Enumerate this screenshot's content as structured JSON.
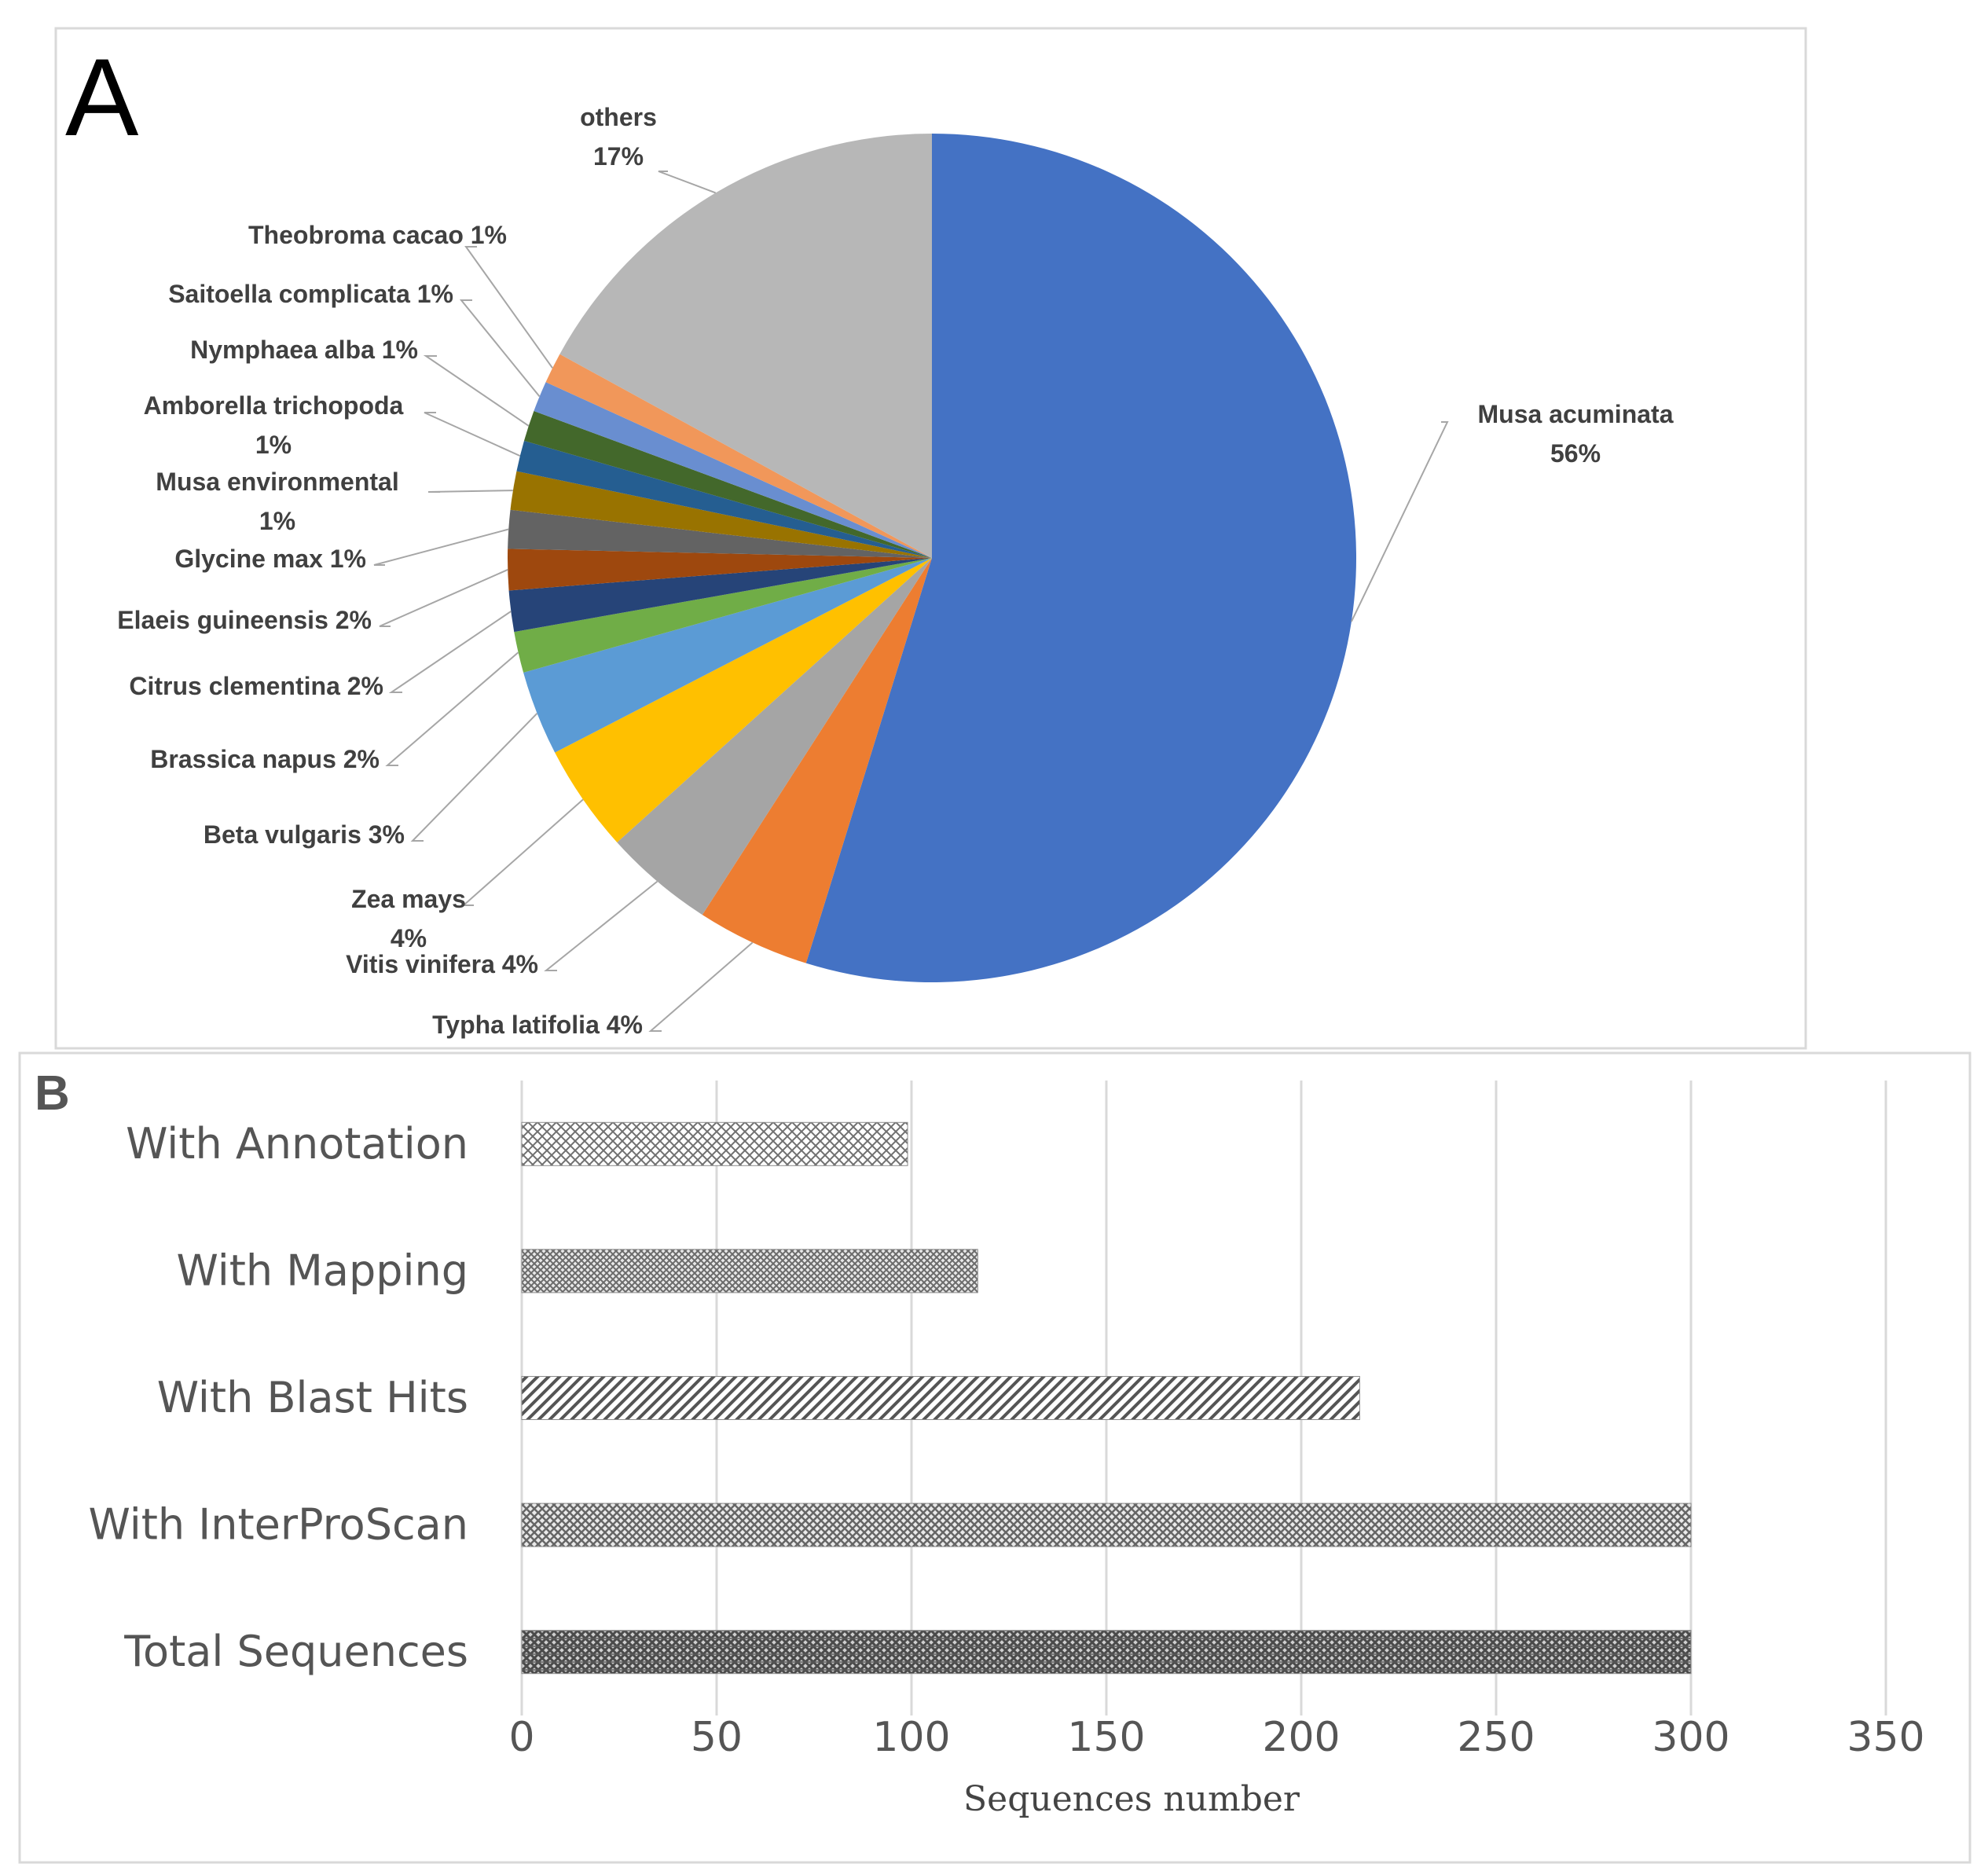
{
  "chart_data": [
    {
      "type": "pie",
      "panel_label": "A",
      "slices": [
        {
          "name": "Musa acuminata",
          "pct_label": "56%",
          "value": 56,
          "color": "#4472C4"
        },
        {
          "name": "Typha latifolia",
          "pct_label": "4%",
          "value": 4.4,
          "color": "#ED7D31"
        },
        {
          "name": "Vitis vinifera",
          "pct_label": "4%",
          "value": 4.3,
          "color": "#A5A5A5"
        },
        {
          "name": "Zea mays",
          "pct_label": "4%",
          "value": 4.2,
          "color": "#FFC000"
        },
        {
          "name": "Beta vulgaris",
          "pct_label": "3%",
          "value": 3.3,
          "color": "#5B9BD5"
        },
        {
          "name": "Brassica napus",
          "pct_label": "2%",
          "value": 1.6,
          "color": "#70AD47"
        },
        {
          "name": "Citrus clementina",
          "pct_label": "2%",
          "value": 1.6,
          "color": "#264478"
        },
        {
          "name": "Elaeis guineensis",
          "pct_label": "2%",
          "value": 1.6,
          "color": "#9E480E"
        },
        {
          "name": "Glycine max",
          "pct_label": "1%",
          "value": 1.5,
          "color": "#636363"
        },
        {
          "name": "Musa environmental",
          "pct_label": "1%",
          "value": 1.5,
          "color": "#997300"
        },
        {
          "name": "Amborella trichopoda",
          "pct_label": "1%",
          "value": 1.2,
          "color": "#255E91"
        },
        {
          "name": "Nymphaea alba",
          "pct_label": "1%",
          "value": 1.2,
          "color": "#43682B"
        },
        {
          "name": "Saitoella complicata",
          "pct_label": "1%",
          "value": 1.2,
          "color": "#698ED0"
        },
        {
          "name": "Theobroma cacao",
          "pct_label": "1%",
          "value": 1.2,
          "color": "#F1975A"
        },
        {
          "name": "others",
          "pct_label": "17%",
          "value": 17.4,
          "color": "#B7B7B7"
        }
      ]
    },
    {
      "type": "bar",
      "orientation": "horizontal",
      "panel_label": "B",
      "categories": [
        "With Annotation",
        "With Mapping",
        "With Blast Hits",
        "With InterProScan",
        "Total Sequences"
      ],
      "values": [
        99,
        117,
        215,
        300,
        300
      ],
      "xlabel": "Sequences number",
      "xlim": [
        0,
        350
      ],
      "xticks": [
        "0",
        "50",
        "100",
        "150",
        "200",
        "250",
        "300",
        "350"
      ],
      "grid": true
    }
  ]
}
